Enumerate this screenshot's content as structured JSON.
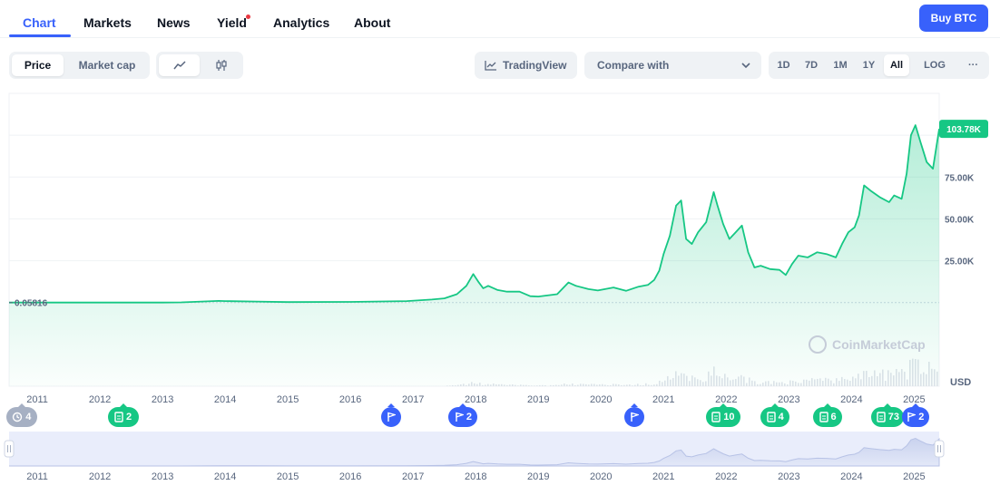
{
  "nav": {
    "tabs": [
      {
        "label": "Chart",
        "active": true
      },
      {
        "label": "Markets"
      },
      {
        "label": "News"
      },
      {
        "label": "Yield",
        "has_dot": true
      },
      {
        "label": "Analytics"
      },
      {
        "label": "About"
      }
    ],
    "buy_label": "Buy BTC"
  },
  "toolbar": {
    "metric_tabs": [
      "Price",
      "Market cap"
    ],
    "metric_selected": "Price",
    "chart_type_icons": [
      "line-chart-icon",
      "candlestick-icon"
    ],
    "chart_type_selected": "line-chart-icon",
    "tradingview_label": "TradingView",
    "compare_label": "Compare with",
    "ranges": [
      "1D",
      "7D",
      "1M",
      "1Y",
      "All"
    ],
    "range_selected": "All",
    "log_label": "LOG",
    "more_label": "···"
  },
  "chart_data": {
    "type": "area",
    "currency": "USD",
    "y_ticks": [
      "25.00K",
      "50.00K",
      "75.00K"
    ],
    "y_tick_values": [
      25000,
      50000,
      75000
    ],
    "ylim": [
      -50000,
      125000
    ],
    "start_label": "0.05816",
    "start_value": 0.05816,
    "current_label": "103.78K",
    "current_value": 103780,
    "x_labels": [
      "2011",
      "2012",
      "2013",
      "2014",
      "2015",
      "2016",
      "2017",
      "2018",
      "2019",
      "2020",
      "2021",
      "2022",
      "2023",
      "2024",
      "2025"
    ],
    "x_range": [
      2010.55,
      2025.4
    ],
    "watermark": "CoinMarketCap",
    "series": [
      {
        "x": [
          2010.55,
          2011.4,
          2012.0,
          2013.0,
          2013.3,
          2013.9,
          2014.0,
          2014.5,
          2015.0,
          2016.0,
          2016.9,
          2017.3,
          2017.5,
          2017.7,
          2017.85,
          2017.96,
          2018.05,
          2018.12,
          2018.2,
          2018.35,
          2018.5,
          2018.7,
          2018.87,
          2019.0,
          2019.3,
          2019.48,
          2019.6,
          2019.8,
          2019.95,
          2020.2,
          2020.4,
          2020.6,
          2020.75,
          2020.85,
          2020.93,
          2021.0,
          2021.1,
          2021.2,
          2021.28,
          2021.36,
          2021.45,
          2021.55,
          2021.68,
          2021.8,
          2021.86,
          2021.95,
          2022.05,
          2022.15,
          2022.25,
          2022.35,
          2022.45,
          2022.55,
          2022.7,
          2022.85,
          2022.95,
          2023.05,
          2023.15,
          2023.3,
          2023.45,
          2023.6,
          2023.75,
          2023.85,
          2023.95,
          2024.05,
          2024.12,
          2024.2,
          2024.3,
          2024.45,
          2024.6,
          2024.68,
          2024.8,
          2024.88,
          2024.95,
          2025.02,
          2025.1,
          2025.2,
          2025.3,
          2025.4
        ],
        "y": [
          0.06,
          10,
          5,
          15,
          120,
          1000,
          850,
          600,
          300,
          400,
          900,
          1800,
          2500,
          5000,
          10000,
          17000,
          12000,
          8500,
          10000,
          7500,
          6500,
          6500,
          3800,
          3600,
          5000,
          12000,
          10000,
          8000,
          7200,
          9000,
          7000,
          9500,
          10500,
          13500,
          19000,
          29000,
          40000,
          58000,
          61000,
          38000,
          35000,
          42000,
          48000,
          66000,
          58000,
          47000,
          38000,
          42000,
          46000,
          30000,
          21000,
          22000,
          20000,
          19500,
          16500,
          23000,
          28000,
          27000,
          30000,
          29000,
          27000,
          35000,
          42000,
          45000,
          52000,
          70000,
          67000,
          63000,
          60000,
          64000,
          62000,
          77000,
          100000,
          106000,
          96000,
          84000,
          80000,
          103780
        ]
      }
    ],
    "events": [
      {
        "kind": "history",
        "label": "4",
        "icon": "clock-icon",
        "x": 2010.75,
        "color": "#a6b0c3"
      },
      {
        "kind": "news",
        "label": "2",
        "icon": "document-icon",
        "x": 2012.37,
        "color": "#16c784"
      },
      {
        "kind": "flag",
        "label": "",
        "icon": "flag-icon",
        "x": 2016.65,
        "color": "#3861fb"
      },
      {
        "kind": "flag",
        "label": "2",
        "icon": "flag-icon",
        "x": 2017.8,
        "color": "#3861fb"
      },
      {
        "kind": "flag",
        "label": "",
        "icon": "flag-icon",
        "x": 2020.53,
        "color": "#3861fb"
      },
      {
        "kind": "news",
        "label": "10",
        "icon": "document-icon",
        "x": 2021.95,
        "color": "#16c784"
      },
      {
        "kind": "news",
        "label": "4",
        "icon": "document-icon",
        "x": 2022.78,
        "color": "#16c784"
      },
      {
        "kind": "news",
        "label": "6",
        "icon": "document-icon",
        "x": 2023.62,
        "color": "#16c784"
      },
      {
        "kind": "news",
        "label": "73",
        "icon": "document-icon",
        "x": 2024.58,
        "color": "#16c784"
      },
      {
        "kind": "flag",
        "label": "2",
        "icon": "flag-icon",
        "x": 2025.02,
        "color": "#3861fb"
      }
    ]
  },
  "colors": {
    "accent": "#3861fb",
    "line": "#16c784",
    "text_secondary": "#58667e",
    "navigator_bg": "#e9edfb"
  }
}
